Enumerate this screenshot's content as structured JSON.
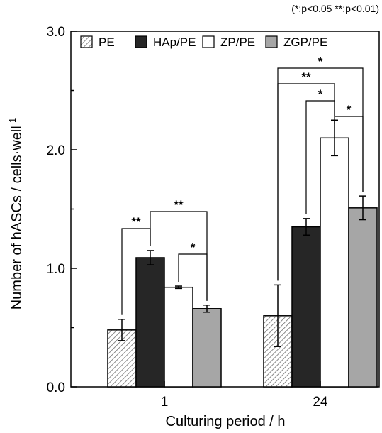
{
  "significance_note": "(*:p<0.05  **:p<0.01)",
  "chart_data": {
    "type": "bar",
    "title": "",
    "xlabel": "Culturing period / h",
    "ylabel": "Number of hASCs / cells·well",
    "ylabel_superscript": "-1",
    "categories": [
      "1",
      "24"
    ],
    "ylim": [
      0.0,
      3.0
    ],
    "yticks": [
      "0.0",
      "1.0",
      "2.0",
      "3.0"
    ],
    "legend_position": "top",
    "series": [
      {
        "name": "PE",
        "values": [
          0.48,
          0.6
        ],
        "errors": [
          0.09,
          0.26
        ],
        "fill": "hatch"
      },
      {
        "name": "HAp/PE",
        "values": [
          1.09,
          1.35
        ],
        "errors": [
          0.06,
          0.07
        ],
        "fill": "#262626"
      },
      {
        "name": "ZP/PE",
        "values": [
          0.84,
          2.1
        ],
        "errors": [
          0.01,
          0.15
        ],
        "fill": "#ffffff"
      },
      {
        "name": "ZGP/PE",
        "values": [
          0.66,
          1.51
        ],
        "errors": [
          0.03,
          0.1
        ],
        "fill": "#a6a6a6"
      }
    ],
    "significance": [
      {
        "category": 0,
        "from": 0,
        "to": 1,
        "label": "**"
      },
      {
        "category": 0,
        "from": 1,
        "to": 3,
        "label": "**"
      },
      {
        "category": 0,
        "from": 2,
        "to": 3,
        "label": "*"
      },
      {
        "category": 1,
        "from": 0,
        "to": 3,
        "label": "*"
      },
      {
        "category": 1,
        "from": 0,
        "to": 2,
        "label": "**"
      },
      {
        "category": 1,
        "from": 1,
        "to": 2,
        "label": "*"
      },
      {
        "category": 1,
        "from": 2,
        "to": 3,
        "label": "*"
      }
    ]
  }
}
